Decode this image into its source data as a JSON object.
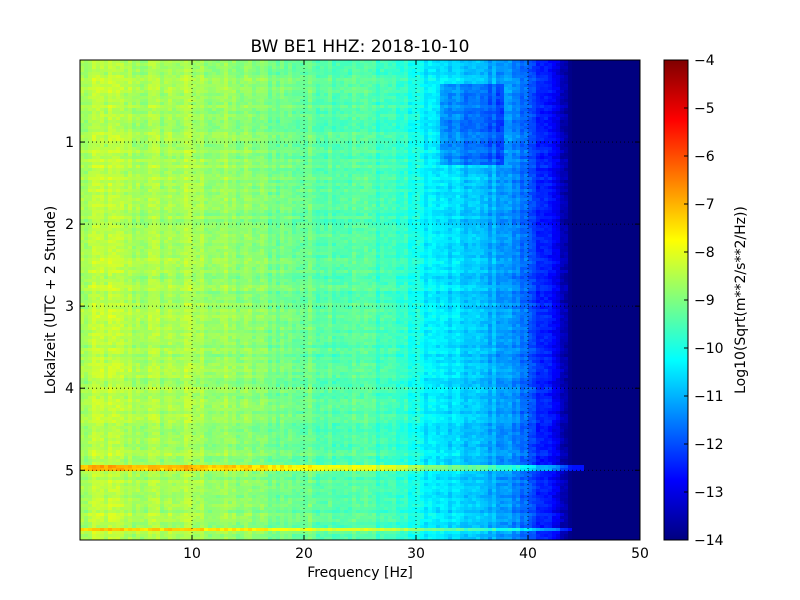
{
  "chart_data": {
    "type": "heatmap",
    "title": "BW BE1 HHZ: 2018-10-10",
    "xlabel": "Frequency [Hz]",
    "ylabel": "Lokalzeit (UTC + 2 Stunde)",
    "colorbar_label": "Log10(Sqrt(m**2/s**2/Hz))",
    "xlim": [
      0,
      50
    ],
    "ylim": [
      5.85,
      0
    ],
    "x_ticks": [
      10,
      20,
      30,
      40,
      50
    ],
    "x_tick_labels": [
      "10",
      "20",
      "30",
      "40",
      "50"
    ],
    "y_ticks": [
      1,
      2,
      3,
      4,
      5
    ],
    "y_tick_labels": [
      "1",
      "2",
      "3",
      "4",
      "5"
    ],
    "colorbar_range": [
      -14,
      -4
    ],
    "colorbar_ticks": [
      -4,
      -5,
      -6,
      -7,
      -8,
      -9,
      -10,
      -11,
      -12,
      -13,
      -14
    ],
    "colorbar_tick_labels": [
      "−4",
      "−5",
      "−6",
      "−7",
      "−8",
      "−9",
      "−10",
      "−11",
      "−12",
      "−13",
      "−14"
    ],
    "colormap": "jet",
    "grid": true,
    "grid_style": "dotted",
    "frequency_profile": [
      {
        "f": 0,
        "v": -8.7
      },
      {
        "f": 2,
        "v": -8.4
      },
      {
        "f": 5,
        "v": -8.6
      },
      {
        "f": 10,
        "v": -8.6
      },
      {
        "f": 15,
        "v": -8.9
      },
      {
        "f": 20,
        "v": -9.2
      },
      {
        "f": 25,
        "v": -9.4
      },
      {
        "f": 28,
        "v": -9.6
      },
      {
        "f": 30,
        "v": -10.1
      },
      {
        "f": 32,
        "v": -10.5
      },
      {
        "f": 35,
        "v": -10.8
      },
      {
        "f": 38,
        "v": -11.2
      },
      {
        "f": 40,
        "v": -11.8
      },
      {
        "f": 42,
        "v": -12.7
      },
      {
        "f": 43.5,
        "v": -13.8
      },
      {
        "f": 44,
        "v": -14.0
      },
      {
        "f": 50,
        "v": -14.0
      }
    ],
    "bright_lines": [
      {
        "time": 4.98,
        "f_end": 45,
        "boost": 1.4
      },
      {
        "time": 5.72,
        "f_end": 44,
        "boost": 1.2
      }
    ],
    "dark_block": {
      "time_start": 0.28,
      "time_end": 1.28,
      "f_start": 32,
      "f_end": 38,
      "boost": -0.8
    }
  }
}
